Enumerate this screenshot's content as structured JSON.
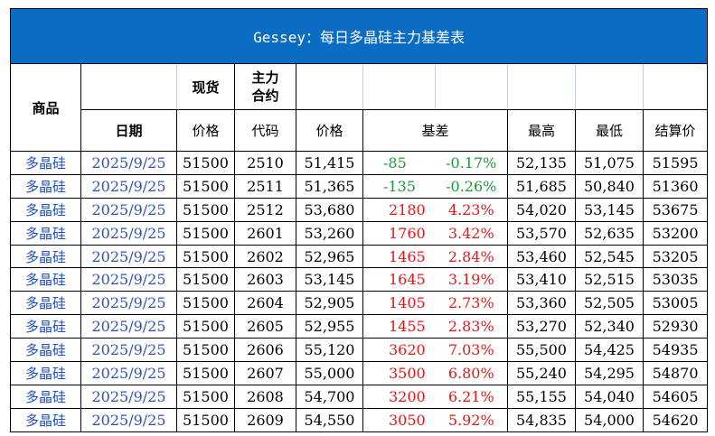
{
  "title": "Gessey：每日多晶硅主力基差表",
  "headers": {
    "product": "商品",
    "spot": "现货",
    "main_contract_line1": "主力",
    "main_contract_line2": "合约",
    "date": "日期",
    "spot_price": "价格",
    "code": "代码",
    "price": "价格",
    "basis": "基差",
    "high": "最高",
    "low": "最低",
    "settle": "结算价"
  },
  "rows": [
    {
      "product": "多晶硅",
      "date": "2025/9/25",
      "spot": "51500",
      "code": "2510",
      "price": "51,415",
      "basis": "-85",
      "basis_pct": "-0.17%",
      "high": "52,135",
      "low": "51,075",
      "settle": "51595",
      "sign": "neg"
    },
    {
      "product": "多晶硅",
      "date": "2025/9/25",
      "spot": "51500",
      "code": "2511",
      "price": "51,365",
      "basis": "-135",
      "basis_pct": "-0.26%",
      "high": "51,685",
      "low": "50,840",
      "settle": "51360",
      "sign": "neg"
    },
    {
      "product": "多晶硅",
      "date": "2025/9/25",
      "spot": "51500",
      "code": "2512",
      "price": "53,680",
      "basis": "2180",
      "basis_pct": "4.23%",
      "high": "54,020",
      "low": "53,145",
      "settle": "53675",
      "sign": "pos"
    },
    {
      "product": "多晶硅",
      "date": "2025/9/25",
      "spot": "51500",
      "code": "2601",
      "price": "53,260",
      "basis": "1760",
      "basis_pct": "3.42%",
      "high": "53,570",
      "low": "52,635",
      "settle": "53200",
      "sign": "pos"
    },
    {
      "product": "多晶硅",
      "date": "2025/9/25",
      "spot": "51500",
      "code": "2602",
      "price": "52,965",
      "basis": "1465",
      "basis_pct": "2.84%",
      "high": "53,460",
      "low": "52,545",
      "settle": "53205",
      "sign": "pos"
    },
    {
      "product": "多晶硅",
      "date": "2025/9/25",
      "spot": "51500",
      "code": "2603",
      "price": "53,145",
      "basis": "1645",
      "basis_pct": "3.19%",
      "high": "53,410",
      "low": "52,515",
      "settle": "53035",
      "sign": "pos"
    },
    {
      "product": "多晶硅",
      "date": "2025/9/25",
      "spot": "51500",
      "code": "2604",
      "price": "52,905",
      "basis": "1405",
      "basis_pct": "2.73%",
      "high": "53,360",
      "low": "52,505",
      "settle": "53005",
      "sign": "pos"
    },
    {
      "product": "多晶硅",
      "date": "2025/9/25",
      "spot": "51500",
      "code": "2605",
      "price": "52,955",
      "basis": "1455",
      "basis_pct": "2.83%",
      "high": "53,270",
      "low": "52,340",
      "settle": "52930",
      "sign": "pos"
    },
    {
      "product": "多晶硅",
      "date": "2025/9/25",
      "spot": "51500",
      "code": "2606",
      "price": "55,120",
      "basis": "3620",
      "basis_pct": "7.03%",
      "high": "55,500",
      "low": "54,425",
      "settle": "54935",
      "sign": "pos"
    },
    {
      "product": "多晶硅",
      "date": "2025/9/25",
      "spot": "51500",
      "code": "2607",
      "price": "55,000",
      "basis": "3500",
      "basis_pct": "6.80%",
      "high": "55,240",
      "low": "54,295",
      "settle": "54870",
      "sign": "pos"
    },
    {
      "product": "多晶硅",
      "date": "2025/9/25",
      "spot": "51500",
      "code": "2608",
      "price": "54,700",
      "basis": "3200",
      "basis_pct": "6.21%",
      "high": "55,155",
      "low": "54,040",
      "settle": "54605",
      "sign": "pos"
    },
    {
      "product": "多晶硅",
      "date": "2025/9/25",
      "spot": "51500",
      "code": "2609",
      "price": "54,550",
      "basis": "3050",
      "basis_pct": "5.92%",
      "high": "54,835",
      "low": "54,000",
      "settle": "54620",
      "sign": "pos"
    }
  ],
  "colors": {
    "title_bg": "#0b6cc3",
    "title_text": "#ffffff",
    "product_text": "#1f4fbf",
    "date_text": "#2e52b8",
    "negative": "#1a9a3a",
    "positive": "#e01818"
  }
}
